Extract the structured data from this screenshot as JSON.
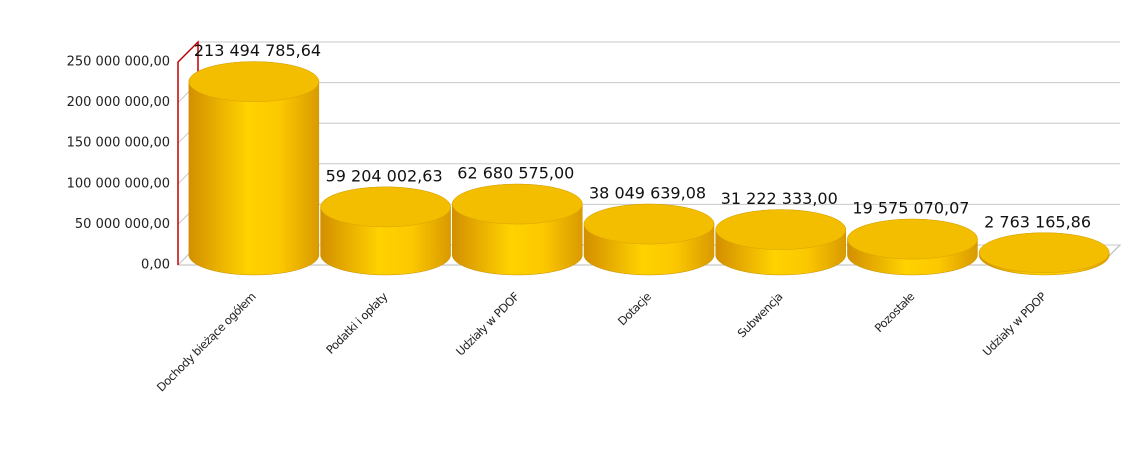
{
  "chart_data": {
    "type": "bar",
    "categories": [
      "Dochody bieżące ogółem",
      "Podatki i opłaty",
      "Udziały w PDOF",
      "Dotacje",
      "Subwencja",
      "Pozostałe",
      "Udziały w PDOP"
    ],
    "values": [
      213494785.64,
      59204002.63,
      62680575.0,
      38049639.08,
      31222333.0,
      19575070.07,
      2763165.86
    ],
    "value_labels": [
      "213 494 785,64",
      "59 204 002,63",
      "62 680 575,00",
      "38 049 639,08",
      "31 222 333,00",
      "19 575 070,07",
      "2 763 165,86"
    ],
    "color": "#f2be00",
    "ylim": [
      0,
      250000000
    ],
    "yticks": [
      {
        "value": 0,
        "label": "0,00"
      },
      {
        "value": 50000000,
        "label": "50 000 000,00"
      },
      {
        "value": 100000000,
        "label": "100 000 000,00"
      },
      {
        "value": 150000000,
        "label": "150 000 000,00"
      },
      {
        "value": 200000000,
        "label": "200 000 000,00"
      },
      {
        "value": 250000000,
        "label": "250 000 000,00"
      }
    ],
    "grid": true
  }
}
